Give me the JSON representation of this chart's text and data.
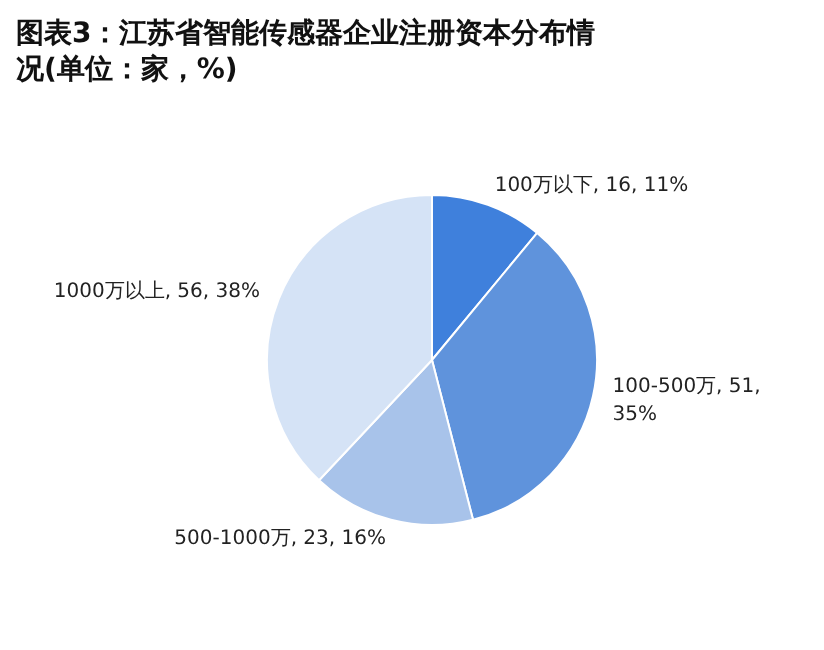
{
  "chart_data": {
    "type": "pie",
    "title": "图表3：江苏省智能传感器企业注册资本分布情况(单位：家，%)",
    "categories": [
      "100万以下",
      "100-500万",
      "500-1000万",
      "1000万以上"
    ],
    "values": [
      11,
      35,
      16,
      38
    ],
    "value_labels": [
      "16, 11%",
      "51, 35%",
      "23, 16%",
      "56, 38%"
    ],
    "colors": [
      "#3f80dc",
      "#5f93dc",
      "#a8c3ea",
      "#d5e3f6"
    ],
    "legend": false
  }
}
